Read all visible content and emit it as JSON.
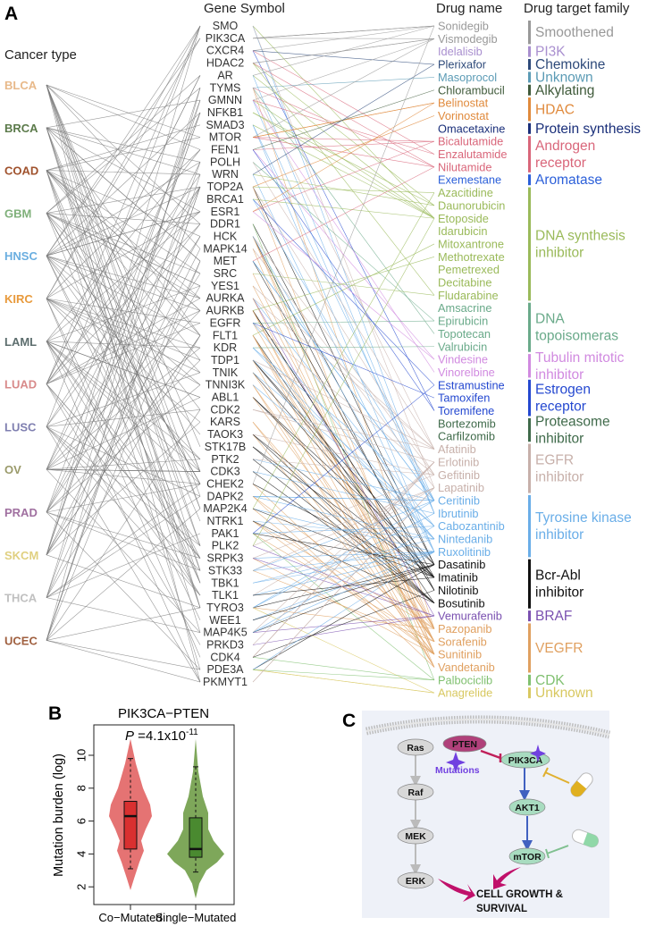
{
  "panel_a": {
    "label": "A",
    "cancer_header": "Cancer type",
    "gene_header": "Gene Symbol",
    "drug_header": "Drug name",
    "family_header": "Drug target family",
    "edge_color_cancer_gene": "#777777",
    "cancers": [
      {
        "name": "BLCA",
        "color": "#e8b98a"
      },
      {
        "name": "BRCA",
        "color": "#5b7a4a"
      },
      {
        "name": "COAD",
        "color": "#a0522d"
      },
      {
        "name": "GBM",
        "color": "#7fb07a"
      },
      {
        "name": "HNSC",
        "color": "#6aaee0"
      },
      {
        "name": "KIRC",
        "color": "#e89a3c"
      },
      {
        "name": "LAML",
        "color": "#5d6e6e"
      },
      {
        "name": "LUAD",
        "color": "#d88a8a"
      },
      {
        "name": "LUSC",
        "color": "#7f7fb0"
      },
      {
        "name": "OV",
        "color": "#9a9a6a"
      },
      {
        "name": "PRAD",
        "color": "#a070a0"
      },
      {
        "name": "SKCM",
        "color": "#e0d080"
      },
      {
        "name": "THCA",
        "color": "#c0c0c0"
      },
      {
        "name": "UCEC",
        "color": "#a06040"
      }
    ],
    "genes": [
      "SMO",
      "PIK3CA",
      "CXCR4",
      "HDAC2",
      "AR",
      "TYMS",
      "GMNN",
      "NFKB1",
      "SMAD3",
      "MTOR",
      "FEN1",
      "POLH",
      "WRN",
      "TOP2A",
      "BRCA1",
      "ESR1",
      "DDR1",
      "HCK",
      "MAPK14",
      "MET",
      "SRC",
      "YES1",
      "AURKA",
      "AURKB",
      "EGFR",
      "FLT1",
      "KDR",
      "TDP1",
      "TNIK",
      "TNNI3K",
      "ABL1",
      "CDK2",
      "KARS",
      "TAOK3",
      "STK17B",
      "PTK2",
      "CDK3",
      "CHEK2",
      "DAPK2",
      "MAP2K4",
      "NTRK1",
      "PAK1",
      "PLK2",
      "SRPK3",
      "STK33",
      "TBK1",
      "TLK1",
      "TYRO3",
      "WEE1",
      "MAP4K5",
      "PRKD3",
      "CDK4",
      "PDE3A",
      "PKMYT1"
    ],
    "families": [
      {
        "name": [
          "Smoothened"
        ],
        "color": "#999999",
        "drugs": [
          "Sonidegib",
          "Vismodegib"
        ]
      },
      {
        "name": [
          "PI3K"
        ],
        "color": "#a98fcf",
        "drugs": [
          "Idelalisib"
        ]
      },
      {
        "name": [
          "Chemokine"
        ],
        "color": "#2e4a7a",
        "drugs": [
          "Plerixafor"
        ]
      },
      {
        "name": [
          "Unknown"
        ],
        "color": "#5b9bb5",
        "drugs": [
          "Masoprocol"
        ]
      },
      {
        "name": [
          "Alkylating"
        ],
        "color": "#3f5a3a",
        "drugs": [
          "Chlorambucil"
        ]
      },
      {
        "name": [
          "HDAC"
        ],
        "color": "#e08a3c",
        "drugs": [
          "Belinostat",
          "Vorinostat"
        ]
      },
      {
        "name": [
          "Protein synthesis"
        ],
        "color": "#1a2f7a",
        "drugs": [
          "Omacetaxine"
        ]
      },
      {
        "name": [
          "Androgen",
          "receptor"
        ],
        "color": "#d9667a",
        "drugs": [
          "Bicalutamide",
          "Enzalutamide",
          "Nilutamide"
        ]
      },
      {
        "name": [
          "Aromatase"
        ],
        "color": "#2b5fd9",
        "drugs": [
          "Exemestane"
        ]
      },
      {
        "name": [
          "DNA synthesis",
          "inhibitor"
        ],
        "color": "#9aba5a",
        "drugs": [
          "Azacitidine",
          "Daunorubicin",
          "Etoposide",
          "Idarubicin",
          "Mitoxantrone",
          "Methotrexate",
          "Pemetrexed",
          "Decitabine",
          "Fludarabine"
        ]
      },
      {
        "name": [
          "DNA",
          "topoisomeras"
        ],
        "color": "#6aaa8a",
        "drugs": [
          "Amsacrine",
          "Epirubicin",
          "Topotecan",
          "Valrubicin"
        ]
      },
      {
        "name": [
          "Tubulin mitotic",
          "inhibitor"
        ],
        "color": "#d18ae0",
        "drugs": [
          "Vindesine",
          "Vinorelbine"
        ]
      },
      {
        "name": [
          "Estrogen",
          "receptor"
        ],
        "color": "#2448d0",
        "drugs": [
          "Estramustine",
          "Tamoxifen",
          "Toremifene"
        ]
      },
      {
        "name": [
          "Proteasome",
          "inhibitor"
        ],
        "color": "#3f6a4a",
        "drugs": [
          "Bortezomib",
          "Carfilzomib"
        ]
      },
      {
        "name": [
          "EGFR",
          "inhibitor"
        ],
        "color": "#c7b0aa",
        "drugs": [
          "Afatinib",
          "Erlotinib",
          "Gefitinib",
          "Lapatinib"
        ]
      },
      {
        "name": [
          "Tyrosine kinase",
          "inhibitor"
        ],
        "color": "#6aaee8",
        "drugs": [
          "Ceritinib",
          "Ibrutinib",
          "Cabozantinib",
          "Nintedanib",
          "Ruxolitinib"
        ]
      },
      {
        "name": [
          "Bcr-Abl",
          "inhibitor"
        ],
        "color": "#111111",
        "drugs": [
          "Dasatinib",
          "Imatinib",
          "Nilotinib",
          "Bosutinib"
        ]
      },
      {
        "name": [
          "BRAF"
        ],
        "color": "#7a50b0",
        "drugs": [
          "Vemurafenib"
        ]
      },
      {
        "name": [
          "VEGFR"
        ],
        "color": "#e0a060",
        "drugs": [
          "Pazopanib",
          "Sorafenib",
          "Sunitinib",
          "Vandetanib"
        ]
      },
      {
        "name": [
          "CDK"
        ],
        "color": "#80c070",
        "drugs": [
          "Palbociclib"
        ]
      },
      {
        "name": [
          "Unknown"
        ],
        "color": "#d8c860",
        "drugs": [
          "Anagrelide"
        ]
      }
    ]
  },
  "panel_b": {
    "label": "B",
    "title": "PIK3CA−PTEN",
    "p_label": "P",
    "p_value": " =4.1x10",
    "p_exponent": "-11",
    "chart_data": {
      "type": "violin",
      "ylabel": "Mutation burden (log)",
      "ylim": [
        0.9,
        11.9
      ],
      "yticks": [
        2,
        4,
        6,
        8,
        10
      ],
      "groups": [
        {
          "name": "Co−Mutated",
          "color": "#e57373",
          "box_color": "#d93030",
          "whisker_low": 3.1,
          "q1": 4.3,
          "median": 6.3,
          "q3": 7.2,
          "whisker_high": 9.8,
          "min": 1.8,
          "max": 11
        },
        {
          "name": "Single−Mutated",
          "color": "#7ea75a",
          "box_color": "#4a8a30",
          "whisker_low": 2.9,
          "q1": 3.8,
          "median": 4.3,
          "q3": 6.2,
          "whisker_high": 9.3,
          "min": 1.3,
          "max": 11
        }
      ]
    }
  },
  "panel_c": {
    "label": "C",
    "nodes": {
      "ras": "Ras",
      "raf": "Raf",
      "mek": "MEK",
      "erk": "ERK",
      "pten": "PTEN",
      "pik3ca": "PIK3CA",
      "akt1": "AKT1",
      "mtor": "mTOR"
    },
    "mutations": "Mutations",
    "outcome_line1": "CELL GROWTH &",
    "outcome_line2": "SURVIVAL",
    "colors": {
      "mapk_node": "#d8d8d8",
      "pten": "#b0407a",
      "pi3k_node": "#a8dcc0",
      "mutation": "#7040e0",
      "inhibit": "#c0205a",
      "activation": "#4060c0",
      "outcome_arrow": "#c0106a"
    }
  }
}
